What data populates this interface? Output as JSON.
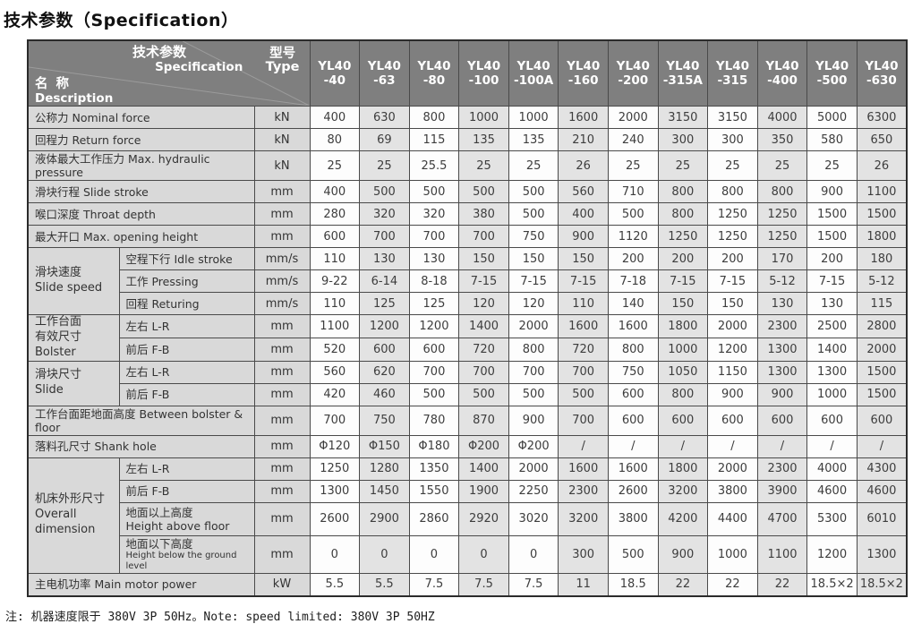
{
  "page": {
    "title": "技术参数（Specification）",
    "note": "注: 机器速度限于 380V 3P 50Hz。Note: speed limited: 380V 3P 50HZ"
  },
  "table": {
    "header": {
      "spec_cn": "技术参数",
      "spec_en": "Specification",
      "name_cn": "名 称",
      "name_en": "Description",
      "type_label": "型号\nType",
      "models": [
        "YL40\n-40",
        "YL40\n-63",
        "YL40\n-80",
        "YL40\n-100",
        "YL40\n-100A",
        "YL40\n-160",
        "YL40\n-200",
        "YL40\n-315A",
        "YL40\n-315",
        "YL40\n-400",
        "YL40\n-500",
        "YL40\n-630"
      ]
    },
    "rows": [
      {
        "label": "公称力  Nominal force",
        "unit": "kN",
        "values": [
          "400",
          "630",
          "800",
          "1000",
          "1000",
          "1600",
          "2000",
          "3150",
          "3150",
          "4000",
          "5000",
          "6300"
        ]
      },
      {
        "label": "回程力  Return force",
        "unit": "kN",
        "values": [
          "80",
          "69",
          "115",
          "135",
          "135",
          "210",
          "240",
          "300",
          "300",
          "350",
          "580",
          "650"
        ]
      },
      {
        "label": "液体最大工作压力 Max. hydraulic pressure",
        "unit": "kN",
        "values": [
          "25",
          "25",
          "25.5",
          "25",
          "25",
          "26",
          "25",
          "25",
          "25",
          "25",
          "25",
          "26"
        ]
      },
      {
        "label": "滑块行程  Slide stroke",
        "unit": "mm",
        "values": [
          "400",
          "500",
          "500",
          "500",
          "500",
          "560",
          "710",
          "800",
          "800",
          "800",
          "900",
          "1100"
        ]
      },
      {
        "label": "喉口深度 Throat depth",
        "unit": "mm",
        "values": [
          "280",
          "320",
          "320",
          "380",
          "500",
          "400",
          "500",
          "800",
          "1250",
          "1250",
          "1500",
          "1500"
        ]
      },
      {
        "label": "最大开口  Max. opening height",
        "unit": "mm",
        "values": [
          "600",
          "700",
          "700",
          "700",
          "750",
          "900",
          "1120",
          "1250",
          "1250",
          "1250",
          "1500",
          "1800"
        ]
      },
      {
        "group": {
          "label": "滑块速度\nSlide speed",
          "rowspan": 3
        },
        "label": "空程下行 Idle stroke",
        "unit": "mm/s",
        "values": [
          "110",
          "130",
          "130",
          "150",
          "150",
          "150",
          "200",
          "200",
          "200",
          "170",
          "200",
          "180"
        ]
      },
      {
        "in_group": true,
        "label": "工作 Pressing",
        "unit": "mm/s",
        "values": [
          "9-22",
          "6-14",
          "8-18",
          "7-15",
          "7-15",
          "7-15",
          "7-18",
          "7-15",
          "7-15",
          "5-12",
          "7-15",
          "5-12"
        ]
      },
      {
        "in_group": true,
        "label": "回程 Returing",
        "unit": "mm/s",
        "values": [
          "110",
          "125",
          "125",
          "120",
          "120",
          "110",
          "140",
          "150",
          "150",
          "130",
          "130",
          "115"
        ]
      },
      {
        "group": {
          "label": "工作台面\n有效尺寸\nBolster",
          "rowspan": 2
        },
        "label": "左右 L-R",
        "unit": "mm",
        "values": [
          "1100",
          "1200",
          "1200",
          "1400",
          "2000",
          "1600",
          "1600",
          "1800",
          "2000",
          "2300",
          "2500",
          "2800"
        ]
      },
      {
        "in_group": true,
        "label": "前后 F-B",
        "unit": "mm",
        "values": [
          "520",
          "600",
          "600",
          "720",
          "800",
          "720",
          "800",
          "1000",
          "1200",
          "1300",
          "1400",
          "2000"
        ]
      },
      {
        "group": {
          "label": "滑块尺寸\nSlide",
          "rowspan": 2
        },
        "label": "左右 L-R",
        "unit": "mm",
        "values": [
          "560",
          "620",
          "700",
          "700",
          "700",
          "700",
          "750",
          "1050",
          "1150",
          "1300",
          "1300",
          "1500"
        ]
      },
      {
        "in_group": true,
        "label": "前后 F-B",
        "unit": "mm",
        "values": [
          "420",
          "460",
          "500",
          "500",
          "500",
          "500",
          "600",
          "800",
          "900",
          "900",
          "1000",
          "1500"
        ]
      },
      {
        "label": "工作台面距地面高度 Between bolster & floor",
        "unit": "mm",
        "values": [
          "700",
          "750",
          "780",
          "870",
          "900",
          "700",
          "600",
          "600",
          "600",
          "600",
          "600",
          "600"
        ]
      },
      {
        "label": "落料孔尺寸 Shank hole",
        "unit": "mm",
        "values": [
          "Φ120",
          "Φ150",
          "Φ180",
          "Φ200",
          "Φ200",
          "/",
          "/",
          "/",
          "/",
          "/",
          "/",
          "/"
        ]
      },
      {
        "group": {
          "label": "机床外形尺寸\nOverall\ndimension",
          "rowspan": 4
        },
        "label": "左右 L-R",
        "unit": "mm",
        "values": [
          "1250",
          "1280",
          "1350",
          "1400",
          "2000",
          "1600",
          "1600",
          "1800",
          "2000",
          "2300",
          "4000",
          "4300"
        ]
      },
      {
        "in_group": true,
        "label": "前后 F-B",
        "unit": "mm",
        "values": [
          "1300",
          "1450",
          "1550",
          "1900",
          "2250",
          "2300",
          "2600",
          "3200",
          "3800",
          "3900",
          "4600",
          "4600"
        ]
      },
      {
        "in_group": true,
        "tall": true,
        "label": "地面以上高度",
        "label2": "Height above floor",
        "values_unit_note": "",
        "unit": "mm",
        "values": [
          "2600",
          "2900",
          "2860",
          "2920",
          "3020",
          "3200",
          "3800",
          "4200",
          "4400",
          "4700",
          "5300",
          "6010"
        ]
      },
      {
        "in_group": true,
        "tall": true,
        "label": "地面以下高度",
        "label2": "Height below the ground level",
        "label2_small": true,
        "unit": "mm",
        "values": [
          "0",
          "0",
          "0",
          "0",
          "0",
          "300",
          "500",
          "900",
          "1000",
          "1100",
          "1200",
          "1300"
        ]
      },
      {
        "label": "主电机功率 Main motor power",
        "unit": "kW",
        "values": [
          "5.5",
          "5.5",
          "7.5",
          "7.5",
          "7.5",
          "11",
          "18.5",
          "22",
          "22",
          "22",
          "18.5×2",
          "18.5×2"
        ]
      }
    ]
  }
}
